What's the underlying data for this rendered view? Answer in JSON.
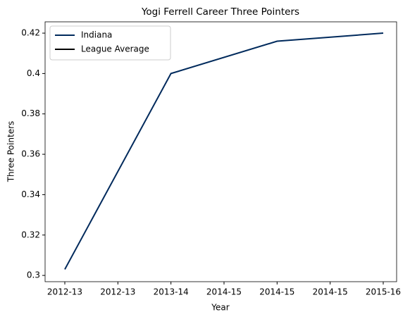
{
  "chart_data": {
    "type": "line",
    "title": "Yogi Ferrell Career Three Pointers",
    "xlabel": "Year",
    "ylabel": "Three Pointers",
    "categories": [
      "2012-13",
      "2013-14",
      "2014-15",
      "2015-16"
    ],
    "xticks": [
      "2012-13",
      "2012-13",
      "2013-14",
      "2014-15",
      "2014-15",
      "2014-15",
      "2015-16"
    ],
    "series": [
      {
        "name": "Indiana",
        "color": "#002a5c",
        "values": [
          0.303,
          0.4,
          0.416,
          0.42
        ]
      },
      {
        "name": "League Average",
        "color": "#000000",
        "values": [
          null,
          null,
          null,
          null
        ]
      }
    ],
    "ylim": [
      0.2969,
      0.4256
    ],
    "yticks": [
      0.3,
      0.32,
      0.34,
      0.36,
      0.38,
      0.4,
      0.42
    ],
    "legend": "upper left"
  }
}
